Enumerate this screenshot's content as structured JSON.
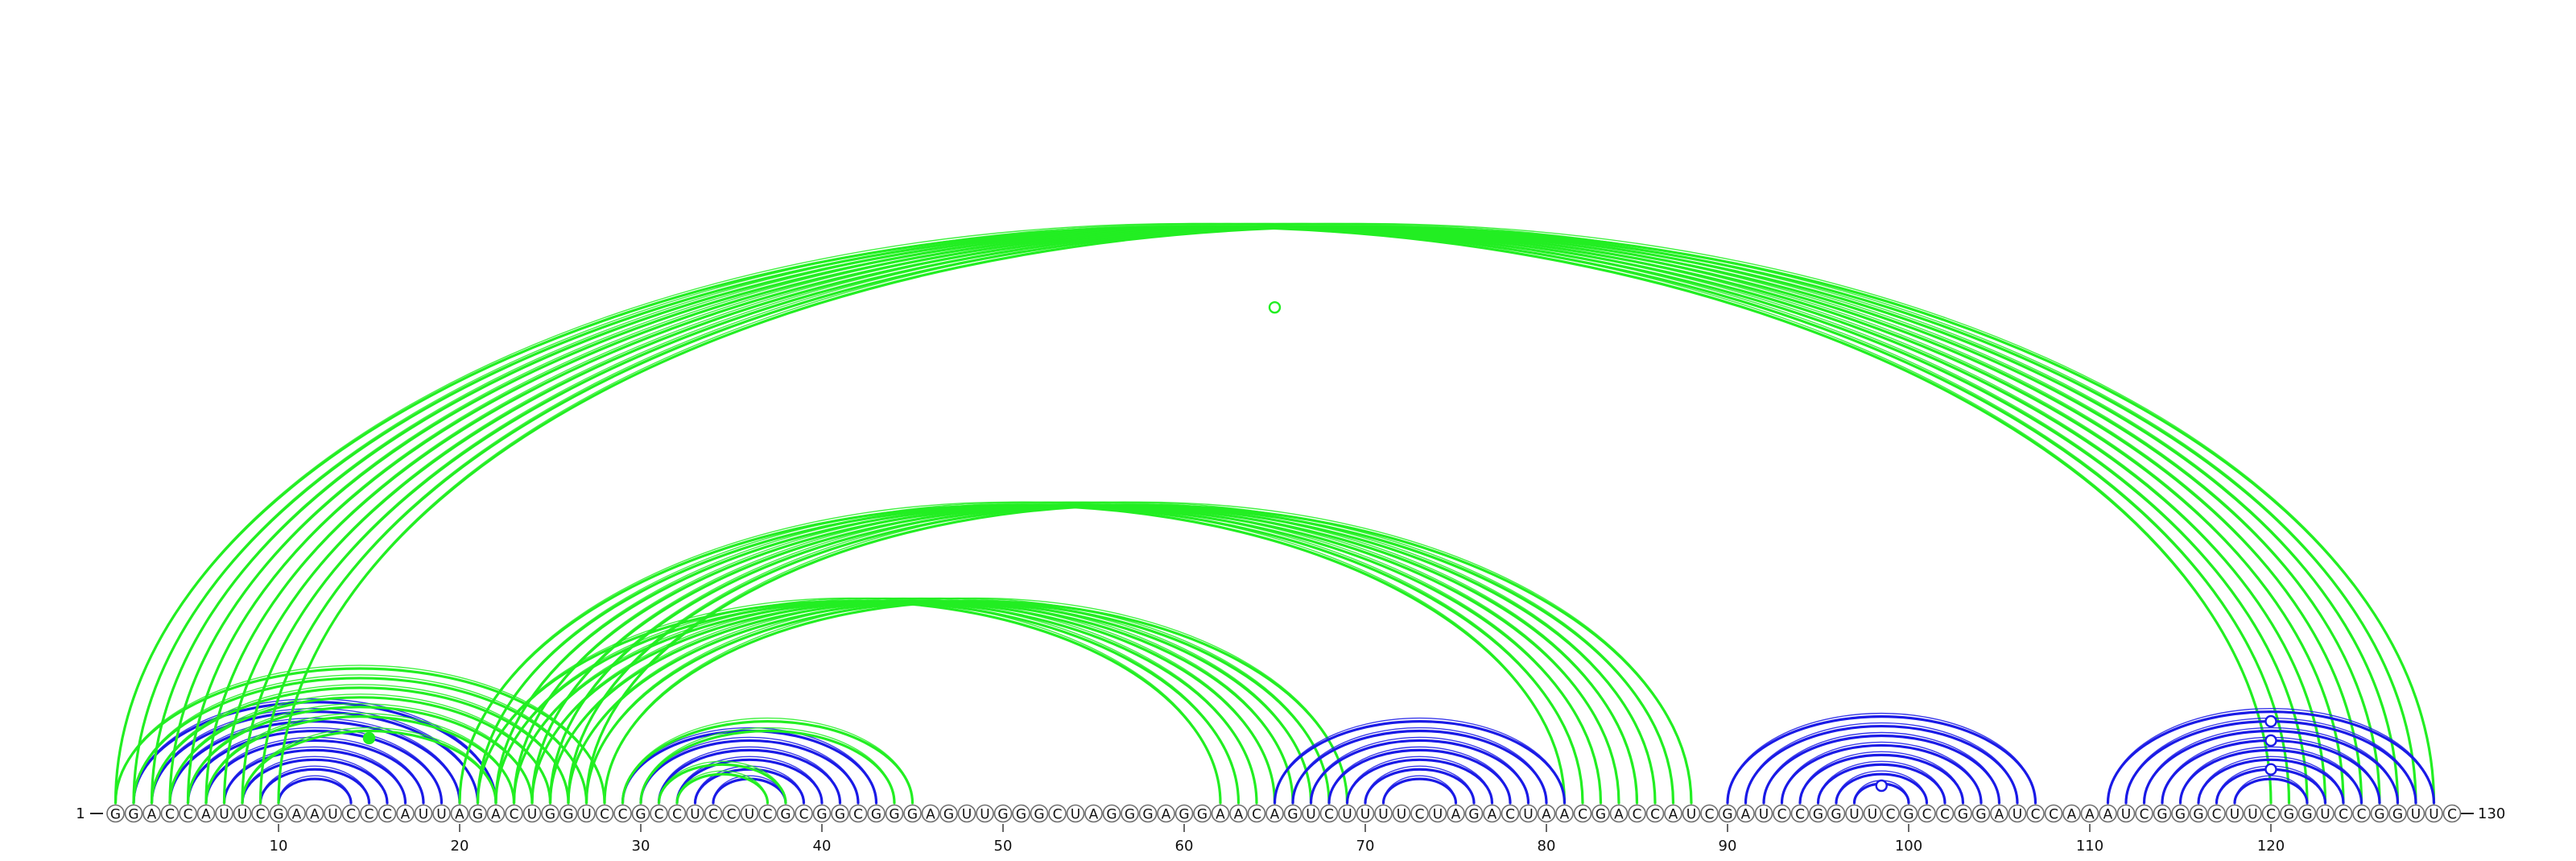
{
  "sequence": "GGACCAUUCGAAUCCCAUUAGACUGGUCCGCCUCCUCGCGGCGGGAGUUGGGCUAGGGAGGAACAGUCUUUUCUAGACUAACGACCAUCGAUCCGGUUCGCCGGAUCCAAAUCGGGCUUCGGUCCGGUUC",
  "start_label": "1",
  "end_label": "130",
  "tick_labels": [
    "10",
    "20",
    "30",
    "40",
    "50",
    "60",
    "70",
    "80",
    "90",
    "100",
    "110",
    "120"
  ],
  "colors": {
    "arc_blue": "#1a1ae6",
    "arc_green": "#22ee22",
    "nucleotide_stroke": "#6e6e6e",
    "text": "#111111"
  },
  "arc_groups": [
    {
      "color": "blue",
      "pairs": [
        [
          2,
          22
        ],
        [
          3,
          21
        ],
        [
          4,
          20
        ],
        [
          5,
          19
        ],
        [
          6,
          18
        ],
        [
          7,
          17
        ],
        [
          8,
          16
        ],
        [
          9,
          15
        ],
        [
          10,
          14
        ]
      ]
    },
    {
      "color": "green",
      "pairs": [
        [
          8,
          22
        ]
      ]
    },
    {
      "color": "green",
      "pairs": [
        [
          1,
          120
        ],
        [
          2,
          121
        ],
        [
          3,
          122
        ],
        [
          4,
          123
        ],
        [
          5,
          124
        ],
        [
          6,
          125
        ],
        [
          7,
          126
        ],
        [
          8,
          127
        ],
        [
          9,
          128
        ],
        [
          10,
          129
        ]
      ]
    },
    {
      "color": "green",
      "pairs": [
        [
          1,
          28
        ],
        [
          2,
          27
        ],
        [
          3,
          26
        ],
        [
          4,
          25
        ],
        [
          5,
          24
        ],
        [
          6,
          23
        ]
      ]
    },
    {
      "color": "green",
      "pairs": [
        [
          21,
          62
        ],
        [
          22,
          63
        ],
        [
          23,
          64
        ],
        [
          24,
          65
        ],
        [
          25,
          66
        ],
        [
          26,
          67
        ],
        [
          27,
          68
        ],
        [
          28,
          69
        ]
      ]
    },
    {
      "color": "green",
      "pairs": [
        [
          20,
          81
        ],
        [
          21,
          82
        ],
        [
          22,
          83
        ],
        [
          23,
          84
        ],
        [
          24,
          85
        ],
        [
          25,
          86
        ],
        [
          26,
          87
        ],
        [
          27,
          88
        ]
      ]
    },
    {
      "color": "blue",
      "pairs": [
        [
          29,
          43
        ],
        [
          30,
          42
        ],
        [
          31,
          41
        ],
        [
          32,
          40
        ],
        [
          33,
          39
        ],
        [
          34,
          38
        ]
      ]
    },
    {
      "color": "green",
      "pairs": [
        [
          29,
          45
        ],
        [
          30,
          44
        ],
        [
          31,
          38
        ],
        [
          32,
          37
        ]
      ]
    },
    {
      "color": "blue",
      "pairs": [
        [
          65,
          81
        ],
        [
          66,
          80
        ],
        [
          67,
          79
        ],
        [
          68,
          78
        ],
        [
          69,
          77
        ],
        [
          70,
          76
        ],
        [
          71,
          75
        ]
      ]
    },
    {
      "color": "blue",
      "pairs": [
        [
          90,
          107
        ],
        [
          91,
          106
        ],
        [
          92,
          105
        ],
        [
          93,
          104
        ],
        [
          94,
          103
        ],
        [
          95,
          102
        ],
        [
          96,
          101
        ],
        [
          97,
          100
        ]
      ]
    },
    {
      "color": "blue",
      "pairs": [
        [
          111,
          129
        ],
        [
          112,
          128
        ],
        [
          113,
          127
        ],
        [
          114,
          126
        ],
        [
          115,
          125
        ],
        [
          116,
          124
        ],
        [
          117,
          123
        ],
        [
          118,
          122
        ]
      ]
    }
  ],
  "markers": [
    {
      "color": "green",
      "filled": false,
      "between": [
        1,
        129
      ],
      "level": 0.8
    },
    {
      "color": "green",
      "filled": true,
      "between": [
        8,
        22
      ],
      "level": 0.9
    },
    {
      "color": "blue",
      "filled": false,
      "between": [
        97,
        100
      ],
      "level": 0.9
    },
    {
      "color": "blue",
      "filled": false,
      "between": [
        112,
        128
      ],
      "level": 0.95
    },
    {
      "color": "blue",
      "filled": false,
      "between": [
        114,
        126
      ],
      "level": 0.95
    },
    {
      "color": "blue",
      "filled": false,
      "between": [
        117,
        123
      ],
      "level": 0.95
    }
  ]
}
